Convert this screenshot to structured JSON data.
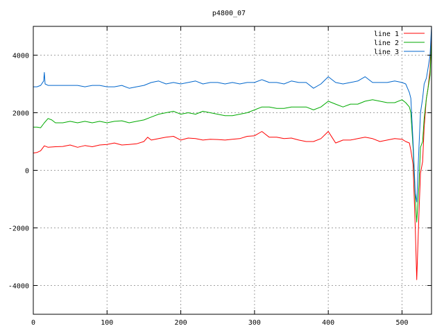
{
  "chart_data": {
    "type": "line",
    "title": "p4800_07",
    "xlabel": "",
    "ylabel": "",
    "xlim": [
      0,
      540
    ],
    "ylim": [
      -5000,
      5000
    ],
    "xticks": [
      0,
      100,
      200,
      300,
      400,
      500
    ],
    "yticks": [
      -4000,
      -2000,
      0,
      2000,
      4000
    ],
    "grid": true,
    "legend_position": "top-right",
    "series": [
      {
        "name": "line 1",
        "color": "#ff0000",
        "points": [
          [
            0,
            600
          ],
          [
            5,
            620
          ],
          [
            10,
            680
          ],
          [
            15,
            850
          ],
          [
            20,
            800
          ],
          [
            30,
            820
          ],
          [
            40,
            830
          ],
          [
            50,
            880
          ],
          [
            60,
            800
          ],
          [
            70,
            860
          ],
          [
            80,
            820
          ],
          [
            90,
            880
          ],
          [
            100,
            900
          ],
          [
            110,
            950
          ],
          [
            120,
            880
          ],
          [
            130,
            900
          ],
          [
            140,
            920
          ],
          [
            150,
            1000
          ],
          [
            155,
            1150
          ],
          [
            160,
            1050
          ],
          [
            170,
            1100
          ],
          [
            180,
            1150
          ],
          [
            190,
            1180
          ],
          [
            200,
            1050
          ],
          [
            210,
            1120
          ],
          [
            220,
            1100
          ],
          [
            230,
            1050
          ],
          [
            240,
            1080
          ],
          [
            250,
            1070
          ],
          [
            260,
            1050
          ],
          [
            270,
            1080
          ],
          [
            280,
            1100
          ],
          [
            290,
            1180
          ],
          [
            300,
            1200
          ],
          [
            310,
            1350
          ],
          [
            320,
            1150
          ],
          [
            330,
            1150
          ],
          [
            340,
            1100
          ],
          [
            350,
            1120
          ],
          [
            360,
            1050
          ],
          [
            370,
            1000
          ],
          [
            380,
            1000
          ],
          [
            390,
            1100
          ],
          [
            400,
            1350
          ],
          [
            405,
            1150
          ],
          [
            410,
            950
          ],
          [
            420,
            1050
          ],
          [
            430,
            1050
          ],
          [
            440,
            1100
          ],
          [
            450,
            1150
          ],
          [
            460,
            1100
          ],
          [
            470,
            1000
          ],
          [
            480,
            1050
          ],
          [
            490,
            1100
          ],
          [
            500,
            1080
          ],
          [
            505,
            1000
          ],
          [
            510,
            950
          ],
          [
            512,
            700
          ],
          [
            515,
            200
          ],
          [
            518,
            -2000
          ],
          [
            520,
            -3800
          ],
          [
            523,
            -1500
          ],
          [
            525,
            -100
          ],
          [
            528,
            300
          ],
          [
            530,
            1500
          ],
          [
            533,
            2500
          ],
          [
            535,
            2800
          ],
          [
            538,
            3500
          ],
          [
            540,
            4900
          ]
        ]
      },
      {
        "name": "line 2",
        "color": "#00aa00",
        "points": [
          [
            0,
            1500
          ],
          [
            5,
            1500
          ],
          [
            10,
            1480
          ],
          [
            15,
            1650
          ],
          [
            20,
            1800
          ],
          [
            25,
            1750
          ],
          [
            30,
            1650
          ],
          [
            40,
            1650
          ],
          [
            50,
            1700
          ],
          [
            60,
            1650
          ],
          [
            70,
            1700
          ],
          [
            80,
            1650
          ],
          [
            90,
            1700
          ],
          [
            100,
            1650
          ],
          [
            110,
            1700
          ],
          [
            120,
            1720
          ],
          [
            130,
            1650
          ],
          [
            140,
            1700
          ],
          [
            150,
            1750
          ],
          [
            160,
            1850
          ],
          [
            170,
            1950
          ],
          [
            180,
            2000
          ],
          [
            190,
            2050
          ],
          [
            200,
            1950
          ],
          [
            210,
            2000
          ],
          [
            220,
            1950
          ],
          [
            230,
            2050
          ],
          [
            240,
            2000
          ],
          [
            250,
            1950
          ],
          [
            260,
            1900
          ],
          [
            270,
            1900
          ],
          [
            280,
            1950
          ],
          [
            290,
            2000
          ],
          [
            300,
            2100
          ],
          [
            310,
            2200
          ],
          [
            320,
            2200
          ],
          [
            330,
            2150
          ],
          [
            340,
            2150
          ],
          [
            350,
            2200
          ],
          [
            360,
            2200
          ],
          [
            370,
            2200
          ],
          [
            380,
            2100
          ],
          [
            390,
            2200
          ],
          [
            400,
            2400
          ],
          [
            410,
            2300
          ],
          [
            420,
            2200
          ],
          [
            430,
            2300
          ],
          [
            440,
            2300
          ],
          [
            450,
            2400
          ],
          [
            460,
            2450
          ],
          [
            470,
            2400
          ],
          [
            480,
            2350
          ],
          [
            490,
            2350
          ],
          [
            500,
            2450
          ],
          [
            505,
            2350
          ],
          [
            510,
            2200
          ],
          [
            512,
            2000
          ],
          [
            515,
            800
          ],
          [
            518,
            -1000
          ],
          [
            520,
            -1800
          ],
          [
            523,
            -500
          ],
          [
            525,
            800
          ],
          [
            528,
            1000
          ],
          [
            530,
            1800
          ],
          [
            533,
            2500
          ],
          [
            535,
            2800
          ],
          [
            538,
            3300
          ],
          [
            540,
            4500
          ]
        ]
      },
      {
        "name": "line 3",
        "color": "#0066cc",
        "points": [
          [
            0,
            2900
          ],
          [
            5,
            2900
          ],
          [
            10,
            2950
          ],
          [
            14,
            3100
          ],
          [
            15,
            3400
          ],
          [
            16,
            3000
          ],
          [
            20,
            2950
          ],
          [
            30,
            2950
          ],
          [
            40,
            2950
          ],
          [
            50,
            2950
          ],
          [
            60,
            2950
          ],
          [
            70,
            2900
          ],
          [
            80,
            2950
          ],
          [
            90,
            2950
          ],
          [
            100,
            2900
          ],
          [
            110,
            2900
          ],
          [
            120,
            2950
          ],
          [
            130,
            2850
          ],
          [
            140,
            2900
          ],
          [
            150,
            2950
          ],
          [
            160,
            3050
          ],
          [
            170,
            3100
          ],
          [
            180,
            3000
          ],
          [
            190,
            3050
          ],
          [
            200,
            3000
          ],
          [
            210,
            3050
          ],
          [
            220,
            3100
          ],
          [
            230,
            3000
          ],
          [
            240,
            3050
          ],
          [
            250,
            3050
          ],
          [
            260,
            3000
          ],
          [
            270,
            3050
          ],
          [
            280,
            3000
          ],
          [
            290,
            3050
          ],
          [
            300,
            3050
          ],
          [
            310,
            3150
          ],
          [
            320,
            3050
          ],
          [
            330,
            3050
          ],
          [
            340,
            3000
          ],
          [
            350,
            3100
          ],
          [
            360,
            3050
          ],
          [
            370,
            3050
          ],
          [
            380,
            2850
          ],
          [
            390,
            3000
          ],
          [
            400,
            3250
          ],
          [
            410,
            3050
          ],
          [
            420,
            3000
          ],
          [
            430,
            3050
          ],
          [
            440,
            3100
          ],
          [
            450,
            3250
          ],
          [
            460,
            3050
          ],
          [
            470,
            3050
          ],
          [
            480,
            3050
          ],
          [
            490,
            3100
          ],
          [
            500,
            3050
          ],
          [
            505,
            3000
          ],
          [
            510,
            2700
          ],
          [
            512,
            2500
          ],
          [
            515,
            1000
          ],
          [
            518,
            -800
          ],
          [
            520,
            -1100
          ],
          [
            523,
            800
          ],
          [
            525,
            2000
          ],
          [
            528,
            2500
          ],
          [
            530,
            3000
          ],
          [
            533,
            3200
          ],
          [
            535,
            3500
          ],
          [
            538,
            4000
          ],
          [
            540,
            5000
          ]
        ]
      }
    ]
  }
}
